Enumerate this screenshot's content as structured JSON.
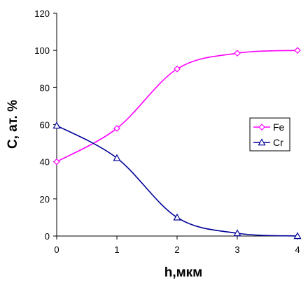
{
  "chart_data": {
    "type": "line",
    "title": "",
    "xlabel": "h,мкм",
    "ylabel": "C, ат. %",
    "xlim": [
      0,
      4
    ],
    "ylim": [
      0,
      120
    ],
    "xticks": [
      0,
      1,
      2,
      3,
      4
    ],
    "yticks": [
      0,
      20,
      40,
      60,
      80,
      100,
      120
    ],
    "grid": false,
    "legend_position": "right",
    "series": [
      {
        "name": "Fe",
        "color": "#ff00ff",
        "marker": "diamond",
        "x": [
          0,
          1,
          2,
          3,
          4
        ],
        "values": [
          40,
          58,
          90,
          98.5,
          100
        ]
      },
      {
        "name": "Cr",
        "color": "#000099",
        "marker": "triangle",
        "x": [
          0,
          1,
          2,
          3,
          4
        ],
        "values": [
          59.5,
          42,
          10,
          1.5,
          0
        ]
      }
    ]
  }
}
